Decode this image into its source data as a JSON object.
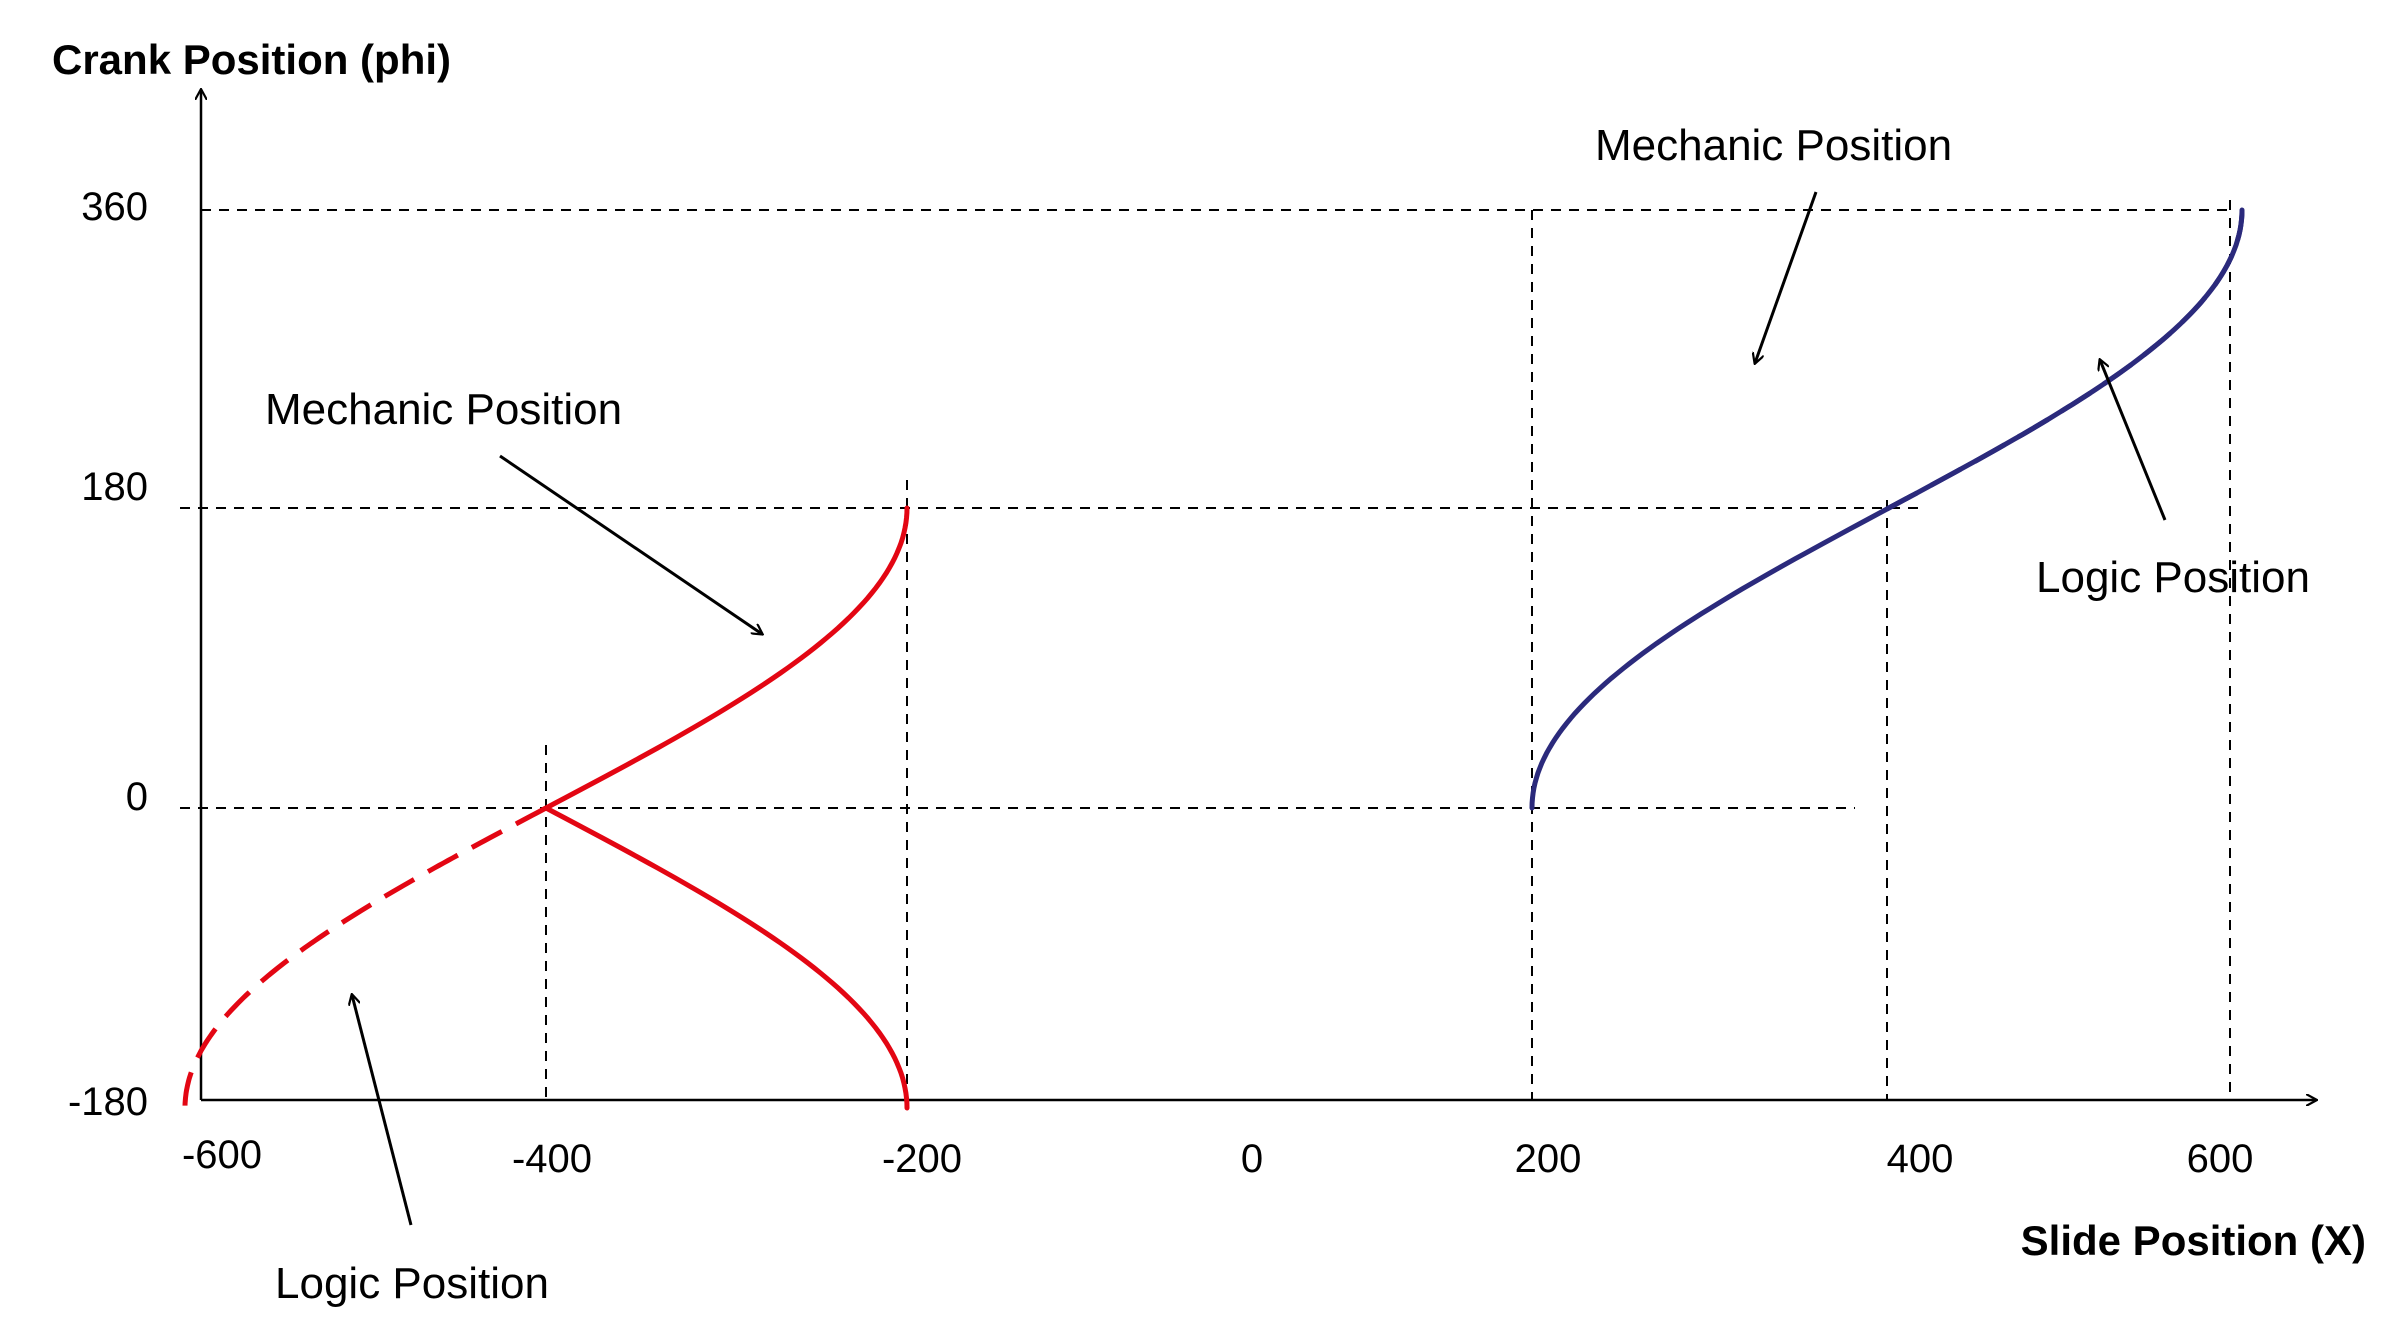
{
  "chart_data": {
    "type": "line",
    "ylabel": "Crank Position (phi)",
    "xlabel": "Slide Position (X)",
    "x_ticks": [
      "-600",
      "-400",
      "-200",
      "0",
      "200",
      "400",
      "600"
    ],
    "y_ticks": [
      "360",
      "180",
      "0",
      "-180"
    ],
    "xlim": [
      -600,
      600
    ],
    "ylim": [
      -180,
      360
    ],
    "annotations": {
      "red_mechanic": "Mechanic Position",
      "red_logic": "Logic Position",
      "blue_mechanic": "Mechanic Position",
      "blue_logic": "Logic Position"
    },
    "colors": {
      "red": "#e30613",
      "blue": "#2b2a7c"
    },
    "series": [
      {
        "color": "red",
        "style": "solid",
        "shape": "x = -400 + 200*sin(|phi|/2)",
        "phi_range": [
          -180,
          180
        ]
      },
      {
        "color": "red",
        "style": "dashed",
        "shape": "x = -400 - 200*sin(|phi|/2)",
        "phi_range": [
          -180,
          0
        ]
      },
      {
        "color": "blue",
        "style": "solid",
        "shape": "x = 400 - 200*cos(phi/2)",
        "phi_range": [
          0,
          360
        ]
      },
      {
        "color": "blue",
        "style": "dashed",
        "shape": "x = 400 + 200*sin(phi/2 - 90)",
        "phi_range": [
          180,
          360
        ]
      }
    ]
  }
}
